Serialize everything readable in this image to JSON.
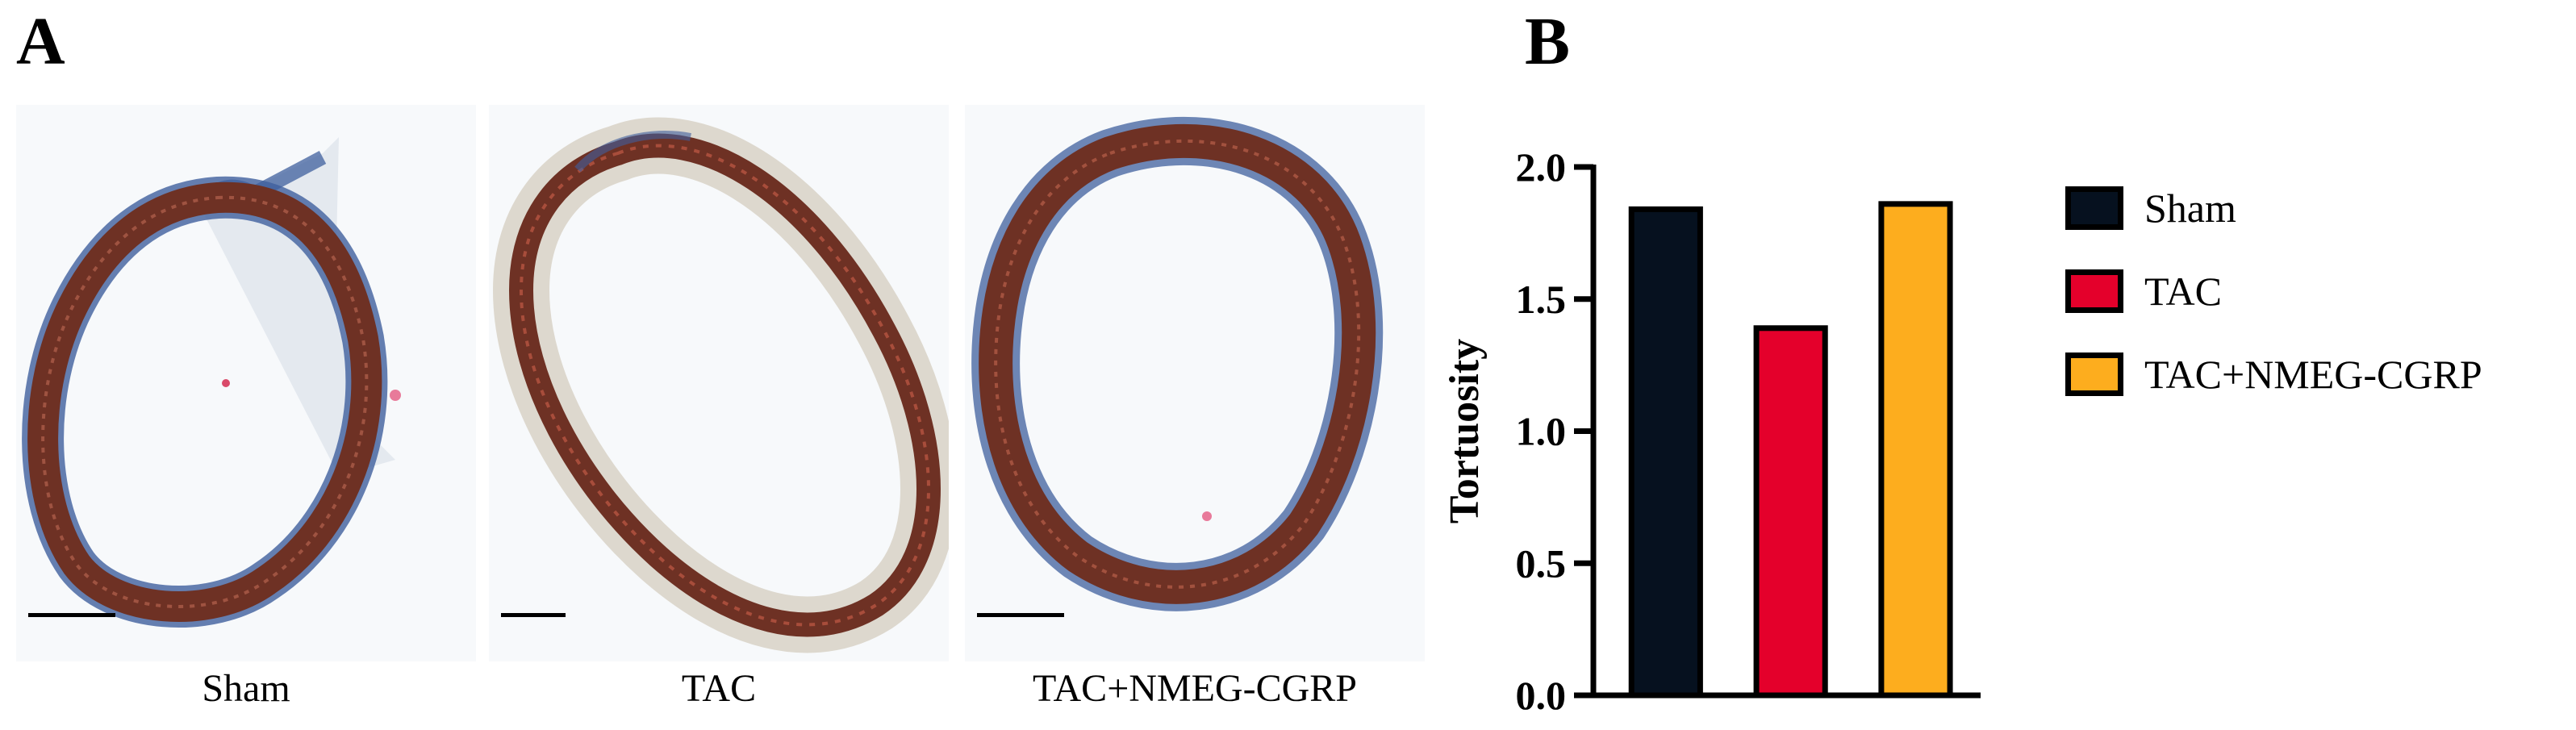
{
  "panels": {
    "a_label": "A",
    "b_label": "B"
  },
  "micrographs": [
    {
      "caption": "Sham"
    },
    {
      "caption": "TAC"
    },
    {
      "caption": "TAC+NMEG-CGRP"
    }
  ],
  "colors": {
    "sham": "#06111f",
    "tac": "#e4002b",
    "nmeg": "#fdad1e",
    "wall": "#6e3124",
    "adventitia": "#3f5f9e"
  },
  "chart_data": {
    "type": "bar",
    "title": "",
    "xlabel": "",
    "ylabel": "Tortuosity",
    "categories": [
      "Sham",
      "TAC",
      "TAC+NMEG-CGRP"
    ],
    "values": [
      1.84,
      1.39,
      1.86
    ],
    "ylim": [
      0.0,
      2.0
    ],
    "yticks": [
      "0.0",
      "0.5",
      "1.0",
      "1.5",
      "2.0"
    ],
    "colors": [
      "#06111f",
      "#e4002b",
      "#fdad1e"
    ],
    "legend": {
      "position": "right",
      "entries": [
        "Sham",
        "TAC",
        "TAC+NMEG-CGRP"
      ]
    }
  }
}
